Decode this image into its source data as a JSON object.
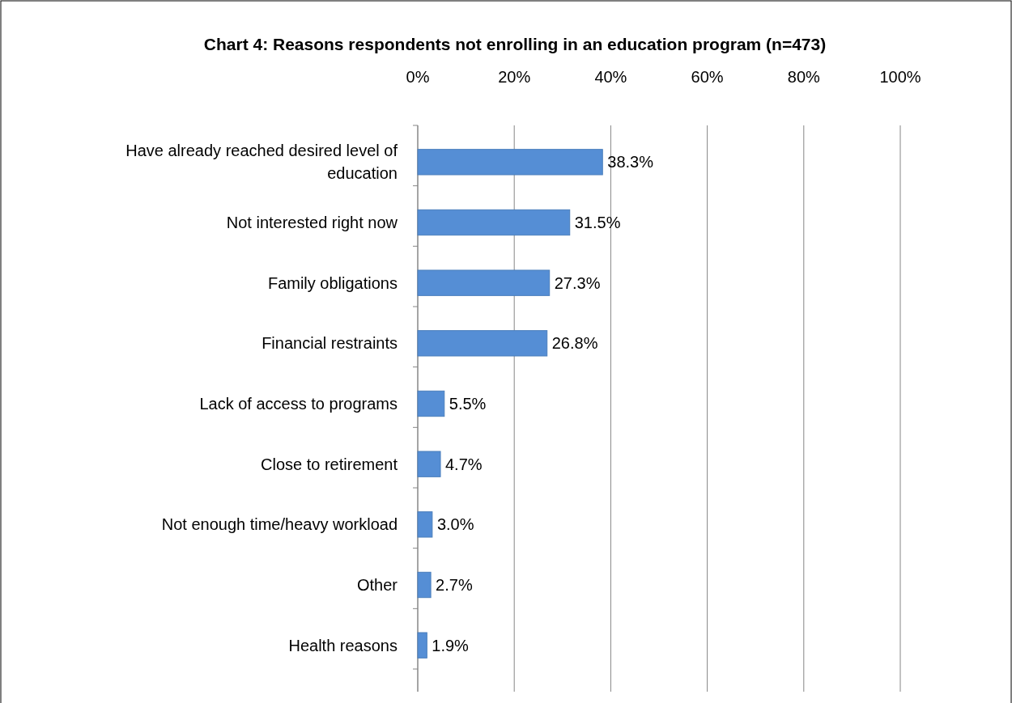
{
  "chart_data": {
    "type": "bar",
    "orientation": "horizontal",
    "title": "Chart 4: Reasons respondents not enrolling in an education program (n=473)",
    "categories": [
      "Have already reached desired level of education",
      "Not interested right now",
      "Family obligations",
      "Financial restraints",
      "Lack of access to programs",
      "Close to retirement",
      "Not enough time/heavy workload",
      "Other",
      "Health reasons"
    ],
    "values": [
      38.3,
      31.5,
      27.3,
      26.8,
      5.5,
      4.7,
      3.0,
      2.7,
      1.9
    ],
    "value_labels": [
      "38.3%",
      "31.5%",
      "27.3%",
      "26.8%",
      "5.5%",
      "4.7%",
      "3.0%",
      "2.7%",
      "1.9%"
    ],
    "color": "#558ed5",
    "xlim": [
      0,
      100
    ],
    "xticks": [
      {
        "value": 0,
        "label": "0%"
      },
      {
        "value": 20,
        "label": "20%"
      },
      {
        "value": 40,
        "label": "40%"
      },
      {
        "value": 60,
        "label": "60%"
      },
      {
        "value": 80,
        "label": "80%"
      },
      {
        "value": 100,
        "label": "100%"
      }
    ],
    "grid": "x"
  }
}
